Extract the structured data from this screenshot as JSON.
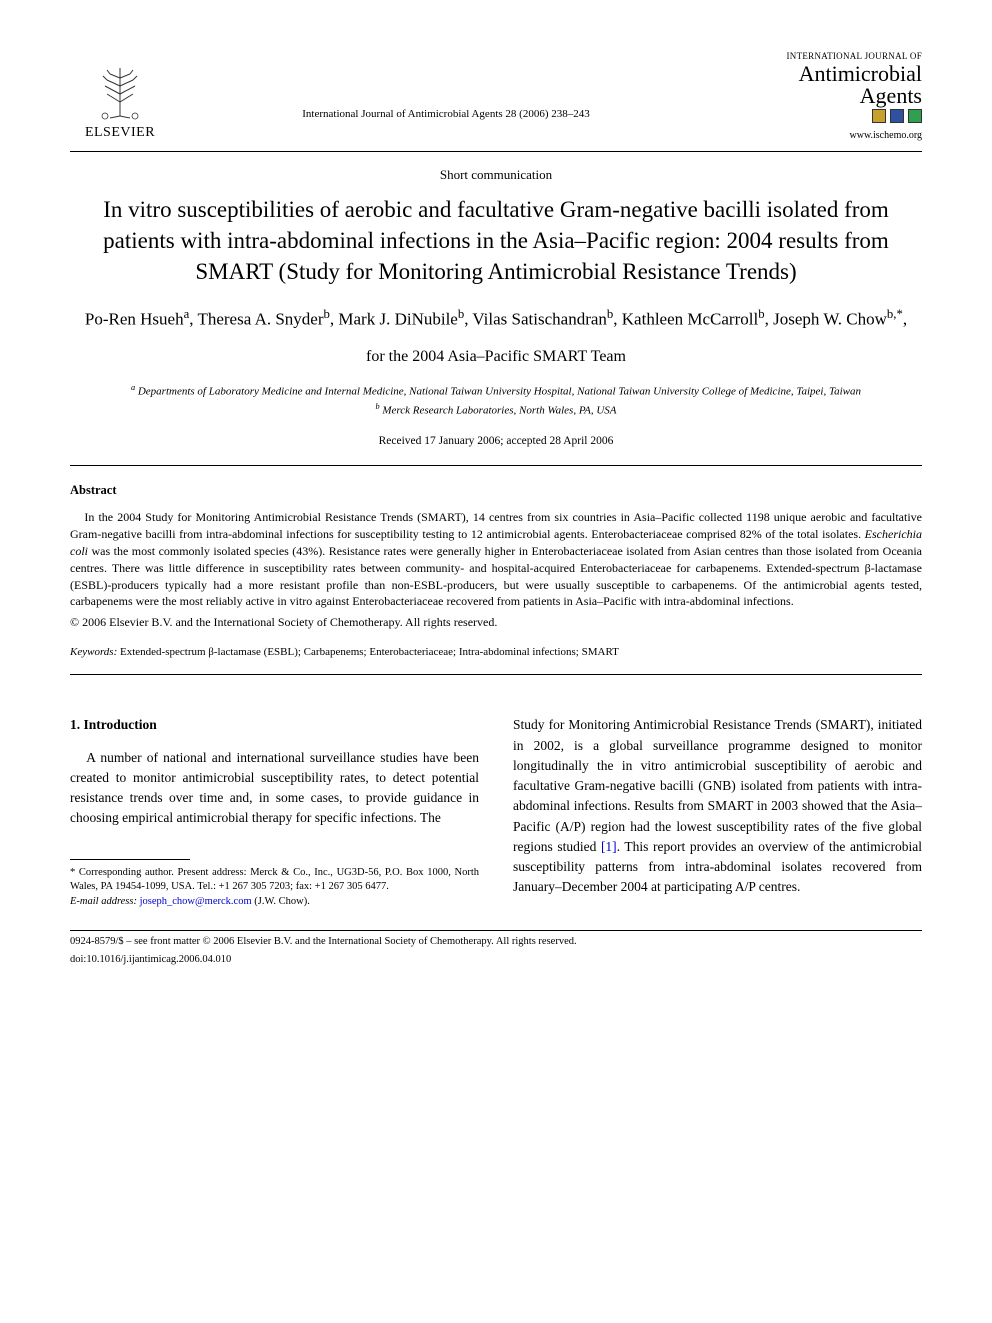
{
  "publisher": "ELSEVIER",
  "journal_ref": "International Journal of Antimicrobial Agents 28 (2006) 238–243",
  "journal_brand_top": "INTERNATIONAL JOURNAL OF",
  "journal_brand_main": "Antimicrobial",
  "journal_brand_sub": "Agents",
  "journal_url": "www.ischemo.org",
  "article_type": "Short communication",
  "title": "In vitro susceptibilities of aerobic and facultative Gram-negative bacilli isolated from patients with intra-abdominal infections in the Asia–Pacific region: 2004 results from SMART (Study for Monitoring Antimicrobial Resistance Trends)",
  "authors_html": "Po-Ren Hsueh<sup>a</sup>, Theresa A. Snyder<sup>b</sup>, Mark J. DiNubile<sup>b</sup>, Vilas Satischandran<sup>b</sup>, Kathleen McCarroll<sup>b</sup>, Joseph W. Chow<sup>b,*</sup>,",
  "team": "for the 2004 Asia–Pacific SMART Team",
  "affiliations": {
    "a": "Departments of Laboratory Medicine and Internal Medicine, National Taiwan University Hospital, National Taiwan University College of Medicine, Taipei, Taiwan",
    "b": "Merck Research Laboratories, North Wales, PA, USA"
  },
  "dates": "Received 17 January 2006; accepted 28 April 2006",
  "abstract_heading": "Abstract",
  "abstract_body": "In the 2004 Study for Monitoring Antimicrobial Resistance Trends (SMART), 14 centres from six countries in Asia–Pacific collected 1198 unique aerobic and facultative Gram-negative bacilli from intra-abdominal infections for susceptibility testing to 12 antimicrobial agents. Enterobacteriaceae comprised 82% of the total isolates. Escherichia coli was the most commonly isolated species (43%). Resistance rates were generally higher in Enterobacteriaceae isolated from Asian centres than those isolated from Oceania centres. There was little difference in susceptibility rates between community- and hospital-acquired Enterobacteriaceae for carbapenems. Extended-spectrum β-lactamase (ESBL)-producers typically had a more resistant profile than non-ESBL-producers, but were usually susceptible to carbapenems. Of the antimicrobial agents tested, carbapenems were the most reliably active in vitro against Enterobacteriaceae recovered from patients in Asia–Pacific with intra-abdominal infections.",
  "abstract_copyright": "© 2006 Elsevier B.V. and the International Society of Chemotherapy. All rights reserved.",
  "keywords_label": "Keywords:",
  "keywords": "Extended-spectrum β-lactamase (ESBL); Carbapenems; Enterobacteriaceae; Intra-abdominal infections; SMART",
  "introduction_heading": "1.  Introduction",
  "intro_col1": "A number of national and international surveillance studies have been created to monitor antimicrobial susceptibility rates, to detect potential resistance trends over time and, in some cases, to provide guidance in choosing empirical antimicrobial therapy for specific infections. The",
  "intro_col2_part1": "Study for Monitoring Antimicrobial Resistance Trends (SMART), initiated in 2002, is a global surveillance programme designed to monitor longitudinally the in vitro antimicrobial susceptibility of aerobic and facultative Gram-negative bacilli (GNB) isolated from patients with intra-abdominal infections. Results from SMART in 2003 showed that the Asia–Pacific (A/P) region had the lowest susceptibility rates of the five global regions studied ",
  "intro_ref": "[1]",
  "intro_col2_part2": ". This report provides an overview of the antimicrobial susceptibility patterns from intra-abdominal isolates recovered from January–December 2004 at participating A/P centres.",
  "corresponding_label": "* Corresponding author.",
  "corresponding_text": " Present address: Merck & Co., Inc., UG3D-56, P.O. Box 1000, North Wales, PA 19454-1099, USA. Tel.: +1 267 305 7203; fax: +1 267 305 6477.",
  "email_label": "E-mail address:",
  "email": "joseph_chow@merck.com",
  "email_attribution": "(J.W. Chow).",
  "footer_line1": "0924-8579/$ – see front matter © 2006 Elsevier B.V. and the International Society of Chemotherapy. All rights reserved.",
  "footer_line2": "doi:10.1016/j.ijantimicag.2006.04.010",
  "brand_cell_colors": [
    "#c8a030",
    "#3050a0",
    "#30a050"
  ]
}
